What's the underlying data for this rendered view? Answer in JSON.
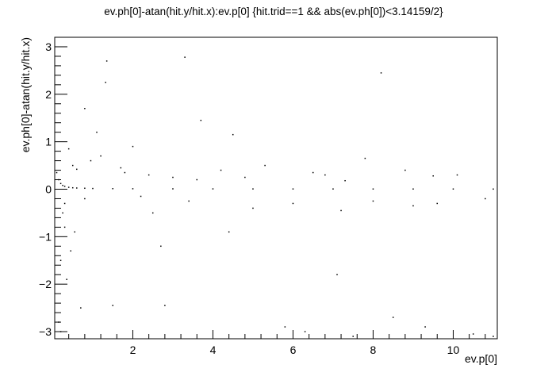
{
  "chart_data": {
    "type": "scatter",
    "title": "ev.ph[0]-atan(hit.y/hit.x):ev.p[0] {hit.trid==1 && abs(ev.ph[0])<3.14159/2}",
    "xlabel": "ev.p[0]",
    "ylabel": "ev.ph[0]-atan(hit.y/hit.x)",
    "xlim": [
      0.05,
      11.1
    ],
    "ylim": [
      -3.15,
      3.2
    ],
    "x_ticks": [
      2,
      4,
      6,
      8,
      10
    ],
    "y_ticks": [
      -3,
      -2,
      -1,
      0,
      1,
      2,
      3
    ],
    "x_tick_labels": [
      "2",
      "4",
      "6",
      "8",
      "10"
    ],
    "y_tick_labels": [
      "−3",
      "−2",
      "−1",
      "0",
      "1",
      "2",
      "3"
    ],
    "grid": false,
    "legend": "none",
    "marker_color": "#000000",
    "series": [
      {
        "x": [
          0.1,
          0.15,
          0.2,
          0.25,
          0.3,
          0.4,
          0.5,
          0.6,
          0.8,
          1.0,
          1.5,
          2.0,
          3.0,
          4.0,
          5.0,
          6.0,
          7.0,
          8.0,
          9.0,
          10.0,
          11.0
        ],
        "y": [
          0.35,
          0.2,
          0.12,
          0.08,
          0.06,
          0.04,
          0.03,
          0.025,
          0.02,
          0.015,
          0.012,
          0.01,
          0.008,
          0.007,
          0.006,
          0.005,
          0.005,
          0.004,
          0.004,
          0.004,
          0.003
        ]
      },
      {
        "x": [
          1.35,
          1.32,
          3.3,
          8.2,
          1.1,
          3.7,
          4.5,
          0.8,
          0.95,
          2.0,
          2.7,
          4.4,
          7.1,
          2.5,
          0.25,
          0.3,
          0.2,
          0.7,
          1.5,
          2.8,
          5.8,
          6.3,
          7.5,
          8.5,
          9.3,
          9.6,
          10.5,
          11.0,
          0.4,
          0.5,
          0.6,
          1.8,
          3.0,
          4.2,
          5.3,
          6.8,
          7.8,
          8.8,
          10.1,
          0.3,
          0.8,
          2.2,
          3.4,
          5.0,
          6.0,
          7.2,
          8.0,
          9.0,
          10.8,
          0.2,
          0.15,
          0.35,
          0.45,
          0.55,
          1.2,
          1.7,
          2.4,
          3.6,
          4.8,
          6.5,
          7.3,
          9.5
        ],
        "y": [
          2.7,
          2.25,
          2.78,
          2.45,
          1.2,
          1.45,
          1.15,
          1.7,
          0.6,
          0.9,
          -1.2,
          -0.9,
          -1.8,
          -0.5,
          -0.5,
          -0.8,
          -1.5,
          -2.5,
          -2.45,
          -2.45,
          -2.9,
          -3.0,
          -3.1,
          -2.7,
          -2.9,
          -0.3,
          -3.05,
          -3.1,
          0.85,
          0.5,
          0.42,
          0.35,
          0.25,
          0.4,
          0.5,
          0.3,
          0.65,
          0.4,
          0.3,
          -0.3,
          -0.2,
          -0.15,
          -0.25,
          -0.4,
          -0.3,
          -0.45,
          -0.25,
          -0.35,
          -0.2,
          -3.0,
          -2.8,
          -1.9,
          -1.3,
          -0.9,
          0.7,
          0.45,
          0.3,
          0.2,
          0.25,
          0.35,
          0.18,
          0.28
        ]
      }
    ]
  }
}
